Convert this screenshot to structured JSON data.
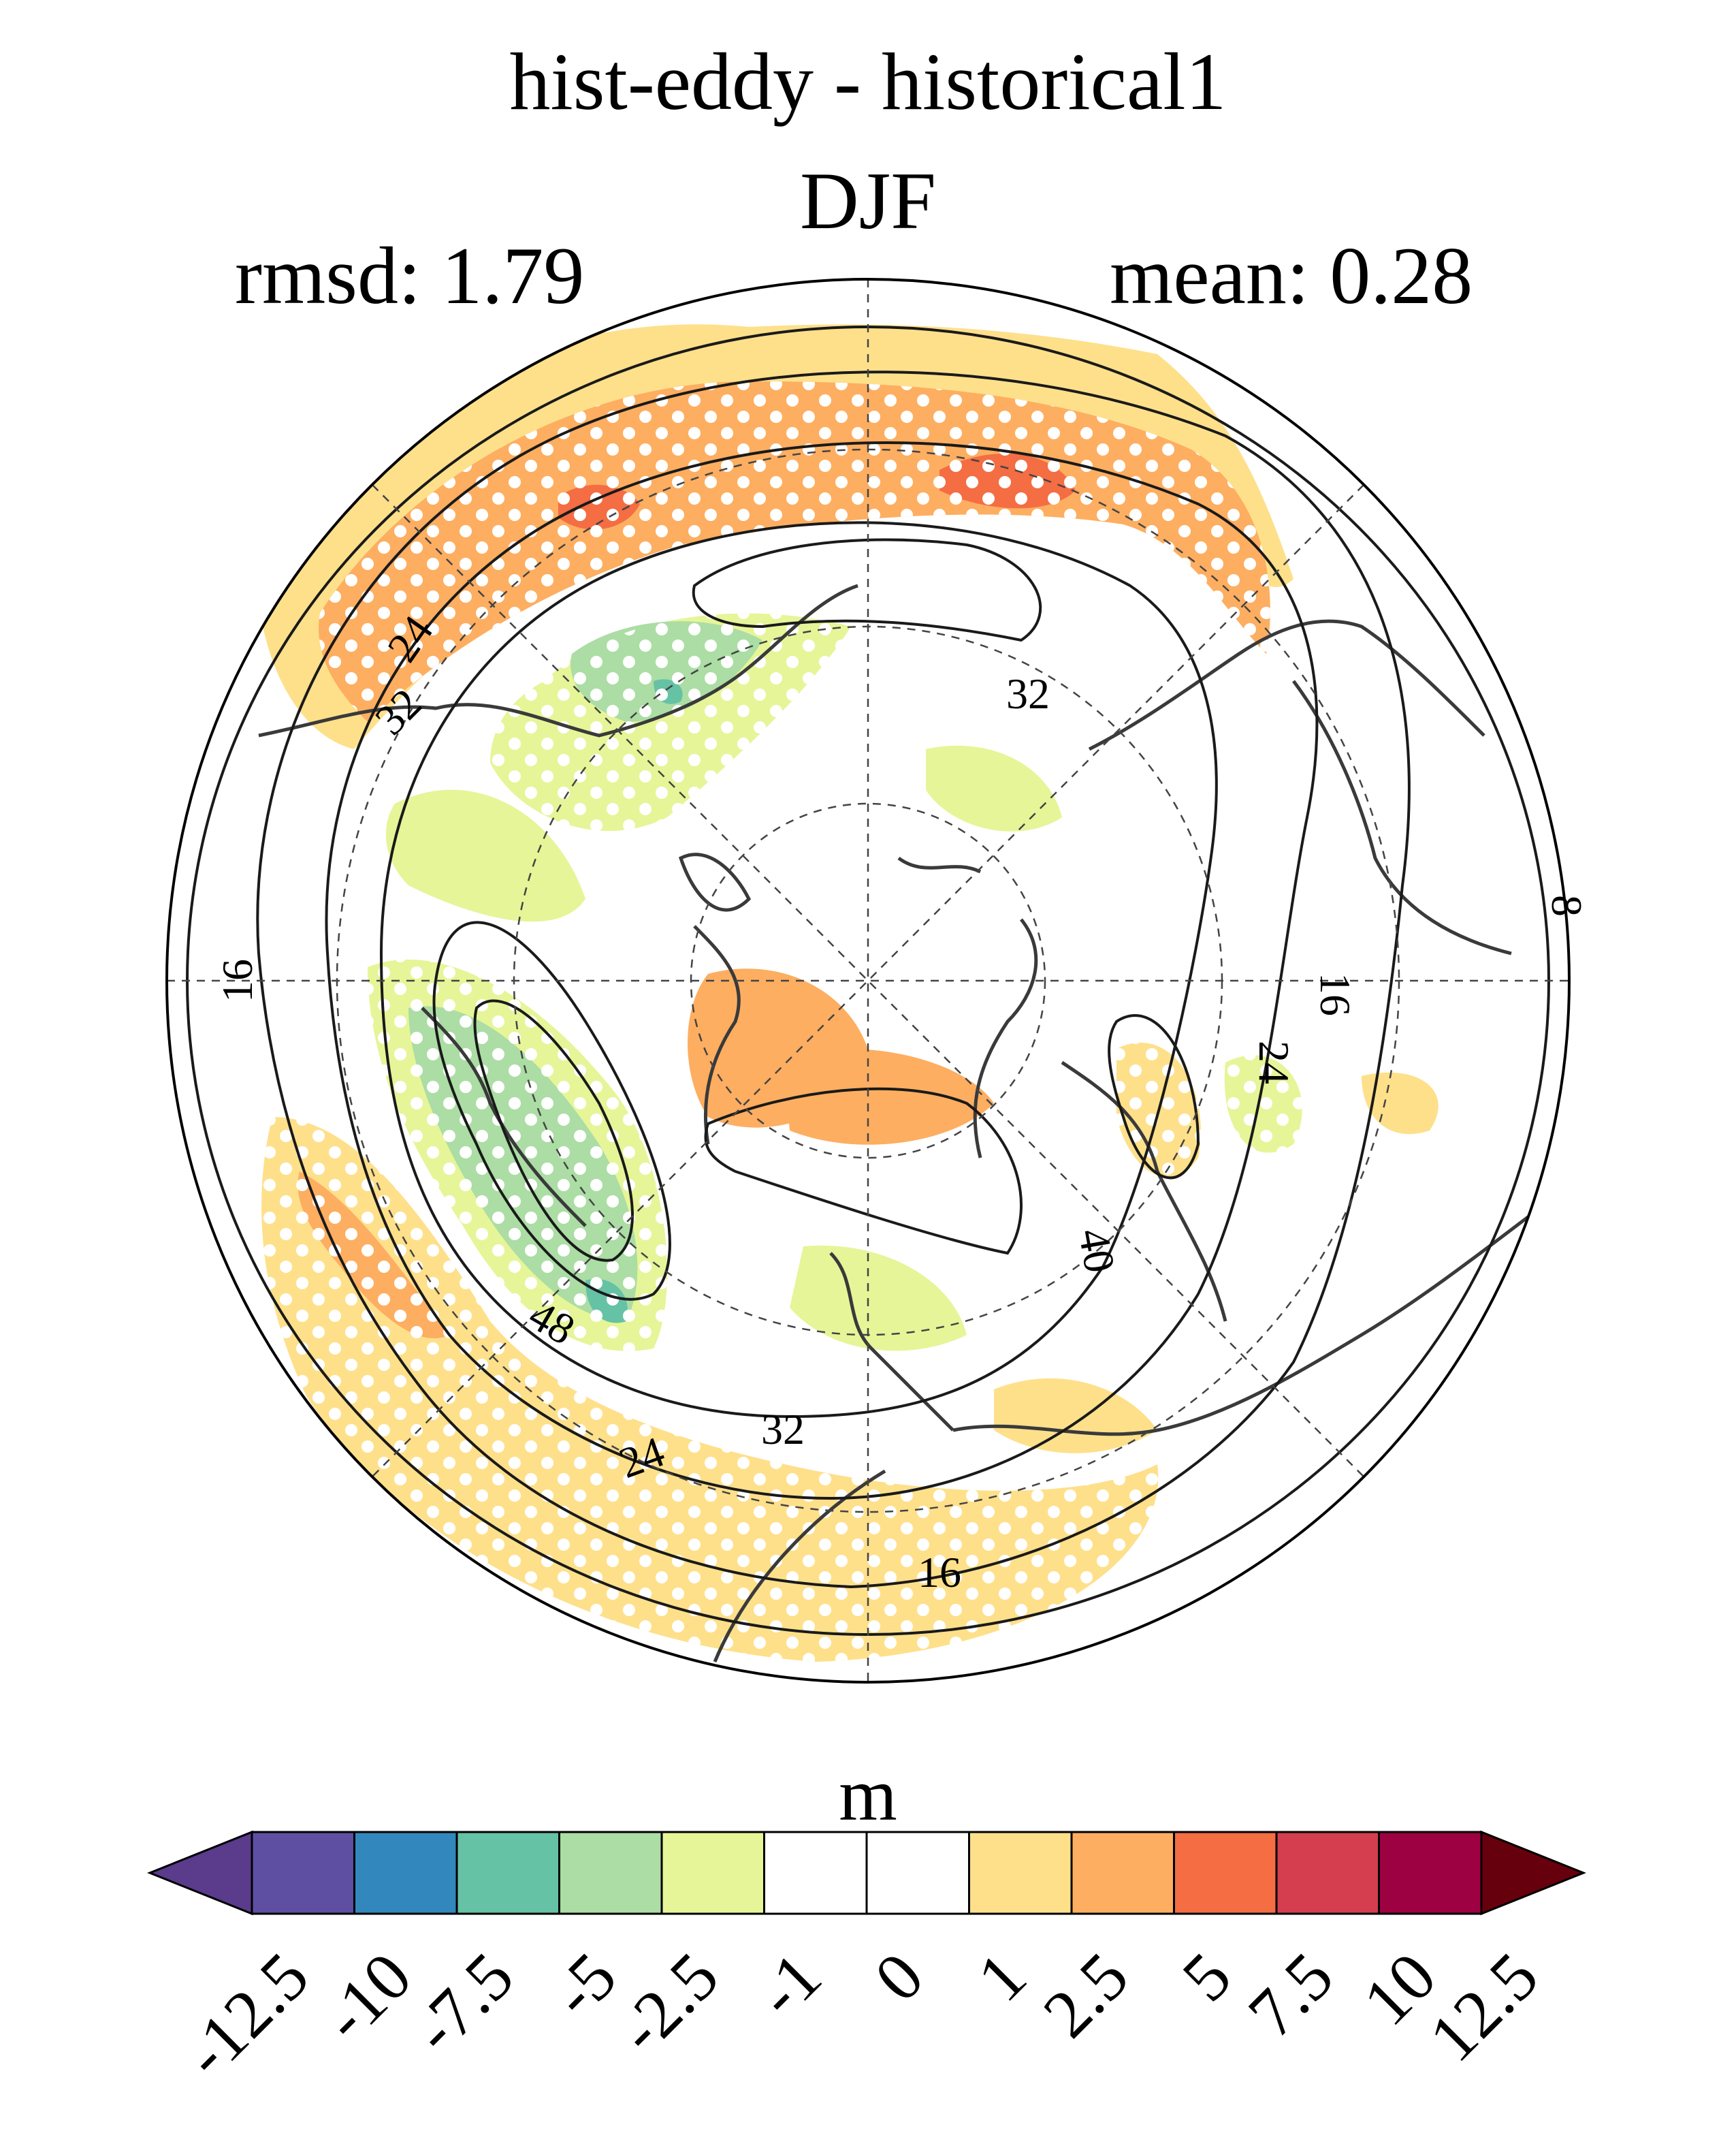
{
  "title": "hist-eddy - historical1",
  "season": "DJF",
  "stats": {
    "rmsd": "rmsd: 1.79",
    "mean": "mean: 0.28"
  },
  "map": {
    "projection": "north polar stereographic",
    "contour_labels": [
      "24",
      "32",
      "32",
      "16",
      "8",
      "16",
      "24",
      "40",
      "48",
      "32",
      "24",
      "16"
    ],
    "stippling": "white dots"
  },
  "colorbar": {
    "units": "m",
    "levels": [
      "-12.5",
      "-10",
      "-7.5",
      "-5",
      "-2.5",
      "-1",
      "0",
      "1",
      "2.5",
      "5",
      "7.5",
      "10",
      "12.5"
    ],
    "colors": [
      "#5e4fa2",
      "#3288bd",
      "#66c2a5",
      "#abdda4",
      "#e6f598",
      "#ffffff",
      "#ffffff",
      "#fee08b",
      "#fdae61",
      "#f46d43",
      "#d53e4f",
      "#9e0142"
    ],
    "low_extend_color": "#5a3b8c",
    "high_extend_color": "#67000d"
  }
}
